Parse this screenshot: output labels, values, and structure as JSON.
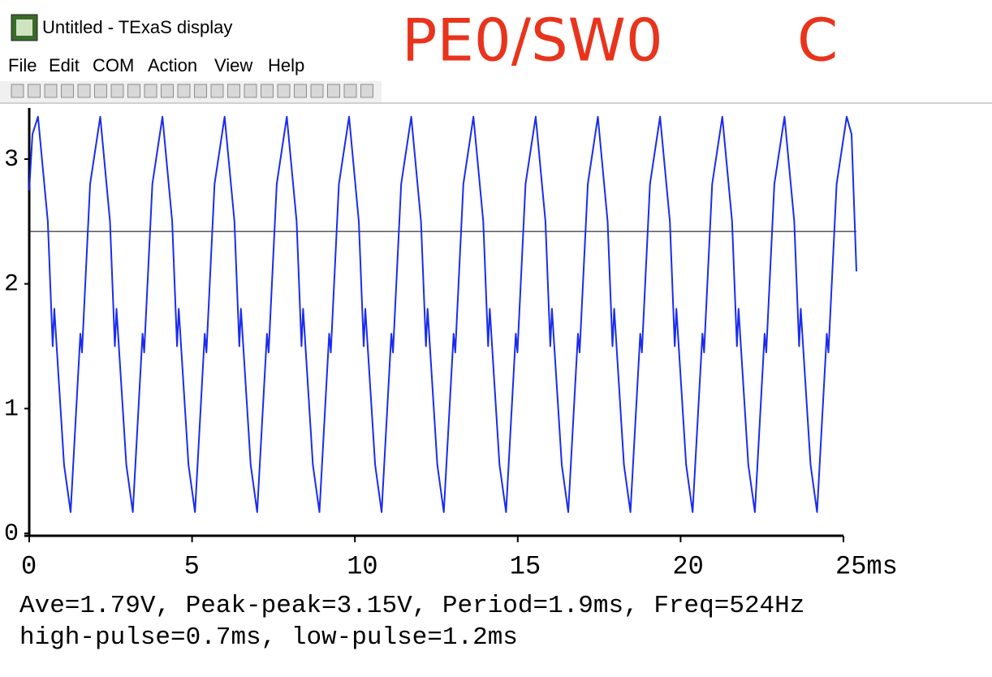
{
  "window": {
    "title": "Untitled - TExaS display",
    "menu": [
      "File",
      "Edit",
      "COM",
      "Action",
      "View",
      "Help"
    ]
  },
  "annotations": [
    "PE0/SW0",
    "C"
  ],
  "chart_data": {
    "type": "line",
    "x": [
      0,
      0.1,
      0.27,
      0.57,
      0.72,
      0.77,
      1.07,
      1.27,
      1.57,
      1.62,
      1.87,
      2.18,
      2.48,
      2.63,
      2.68,
      2.98,
      3.18,
      3.48,
      3.53,
      3.78,
      4.09,
      4.39,
      4.54,
      4.59,
      4.89,
      5.09,
      5.39,
      5.44,
      5.69,
      6.0,
      6.3,
      6.45,
      6.5,
      6.8,
      7.0,
      7.3,
      7.35,
      7.6,
      7.91,
      8.21,
      8.36,
      8.41,
      8.71,
      8.91,
      9.21,
      9.26,
      9.51,
      9.82,
      10.12,
      10.27,
      10.32,
      10.62,
      10.82,
      11.12,
      11.17,
      11.42,
      11.73,
      12.03,
      12.18,
      12.23,
      12.53,
      12.73,
      13.03,
      13.08,
      13.33,
      13.64,
      13.94,
      14.09,
      14.14,
      14.44,
      14.64,
      14.94,
      14.99,
      15.24,
      15.55,
      15.85,
      16.0,
      16.05,
      16.35,
      16.55,
      16.85,
      16.9,
      17.15,
      17.46,
      17.76,
      17.91,
      17.96,
      18.26,
      18.46,
      18.76,
      18.81,
      19.06,
      19.37,
      19.67,
      19.82,
      19.87,
      20.17,
      20.37,
      20.67,
      20.72,
      20.97,
      21.28,
      21.58,
      21.73,
      21.78,
      22.08,
      22.28,
      22.58,
      22.63,
      22.88,
      23.19,
      23.49,
      23.64,
      23.69,
      23.99,
      24.19,
      24.49,
      24.54,
      24.79,
      25.1,
      25.25,
      25.4
    ],
    "values": [
      2.75,
      3.2,
      3.34,
      2.5,
      1.5,
      1.8,
      0.55,
      0.17,
      1.6,
      1.45,
      2.8,
      3.34,
      2.5,
      1.5,
      1.8,
      0.55,
      0.17,
      1.6,
      1.45,
      2.8,
      3.34,
      2.5,
      1.5,
      1.8,
      0.55,
      0.17,
      1.6,
      1.45,
      2.8,
      3.34,
      2.5,
      1.5,
      1.8,
      0.55,
      0.17,
      1.6,
      1.45,
      2.8,
      3.34,
      2.5,
      1.5,
      1.8,
      0.55,
      0.17,
      1.6,
      1.45,
      2.8,
      3.34,
      2.5,
      1.5,
      1.8,
      0.55,
      0.17,
      1.6,
      1.45,
      2.8,
      3.34,
      2.5,
      1.5,
      1.8,
      0.55,
      0.17,
      1.6,
      1.45,
      2.8,
      3.34,
      2.5,
      1.5,
      1.8,
      0.55,
      0.17,
      1.6,
      1.45,
      2.8,
      3.34,
      2.5,
      1.5,
      1.8,
      0.55,
      0.17,
      1.6,
      1.45,
      2.8,
      3.34,
      2.5,
      1.5,
      1.8,
      0.55,
      0.17,
      1.6,
      1.45,
      2.8,
      3.34,
      2.5,
      1.5,
      1.8,
      0.55,
      0.17,
      1.6,
      1.45,
      2.8,
      3.34,
      2.5,
      1.5,
      1.8,
      0.55,
      0.17,
      1.6,
      1.45,
      2.8,
      3.34,
      2.5,
      1.5,
      1.8,
      0.55,
      0.17,
      1.6,
      1.45,
      2.8,
      3.34,
      3.2,
      2.1
    ],
    "color": "#1a2cf0",
    "reference_line": 2.42,
    "xlim": [
      0,
      25
    ],
    "ylim": [
      0,
      3.41
    ],
    "xticks": [
      0,
      5,
      10,
      15,
      20,
      {
        "value": 25,
        "label": "25ms"
      }
    ],
    "yticks": [
      0,
      1,
      2,
      3
    ],
    "stats": [
      "Ave=1.79V, Peak-peak=3.15V, Period=1.9ms, Freq=524Hz",
      "high-pulse=0.7ms, low-pulse=1.2ms"
    ]
  }
}
